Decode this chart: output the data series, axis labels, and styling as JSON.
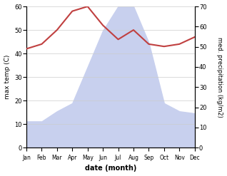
{
  "months": [
    "Jan",
    "Feb",
    "Mar",
    "Apr",
    "May",
    "Jun",
    "Jul",
    "Aug",
    "Sep",
    "Oct",
    "Nov",
    "Dec"
  ],
  "temp": [
    42,
    44,
    50,
    58,
    60,
    52,
    46,
    50,
    44,
    43,
    44,
    47
  ],
  "precip": [
    13,
    13,
    18,
    22,
    40,
    58,
    70,
    70,
    52,
    22,
    18,
    17
  ],
  "temp_color": "#c04040",
  "precip_fill_color": "#c8d0ee",
  "ylabel_left": "max temp (C)",
  "ylabel_right": "med. precipitation (kg/m2)",
  "xlabel": "date (month)",
  "ylim_left": [
    0,
    60
  ],
  "ylim_right": [
    0,
    70
  ],
  "yticks_left": [
    0,
    10,
    20,
    30,
    40,
    50,
    60
  ],
  "yticks_right": [
    0,
    10,
    20,
    30,
    40,
    50,
    60,
    70
  ],
  "grid_color": "#cccccc",
  "plot_bg": "#f8f8ff"
}
